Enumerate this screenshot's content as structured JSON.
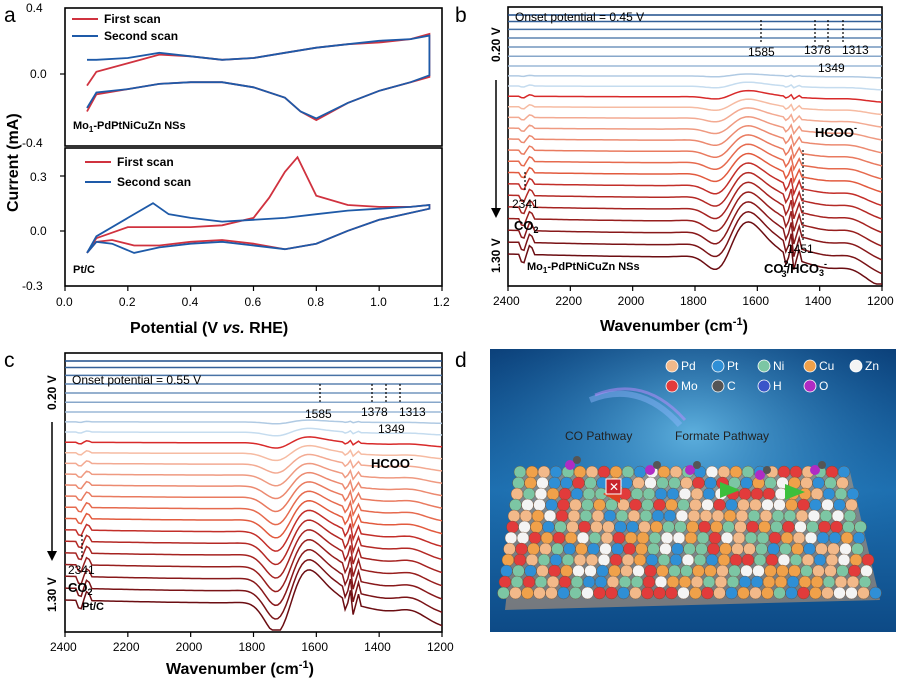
{
  "panels": {
    "a": {
      "label": "a",
      "ylabel": "Current (mA)",
      "xlabel_prefix": "Potential (V ",
      "xlabel_italic": "vs.",
      "xlabel_suffix": " RHE)",
      "xticks": [
        "0.0",
        "0.2",
        "0.4",
        "0.6",
        "0.8",
        "1.0",
        "1.2"
      ],
      "legend": [
        "First scan",
        "Second scan"
      ],
      "top_sample_1": "Mo",
      "top_sample_sub": "1",
      "top_sample_2": "-PdPtNiCuZn NSs",
      "bottom_sample": "Pt/C",
      "top_yticks": [
        "0.4",
        "0.0",
        "-0.4"
      ],
      "bottom_yticks": [
        "0.3",
        "0.0",
        "-0.3"
      ]
    },
    "b": {
      "label": "b",
      "onset": "Onset potential = 0.45 V",
      "v_top": "0.20 V",
      "v_bottom": "1.30 V",
      "peaks": [
        "1585",
        "1378",
        "1313",
        "1349",
        "2341",
        "1451"
      ],
      "hcoo_1": "HCOO",
      "hcoo_2": "-",
      "co2": "CO",
      "co2_sub": "2",
      "co3_1": "CO",
      "co3_sub": "3",
      "co3_sup": "2-",
      "co3_2": "/HCO",
      "co3_sub2": "3",
      "co3_sup2": "-",
      "sample_1": "Mo",
      "sample_sub": "1",
      "sample_2": "-PdPtNiCuZn NSs",
      "xticks": [
        "2400",
        "2200",
        "2000",
        "1800",
        "1600",
        "1400",
        "1200"
      ],
      "xlabel_1": "Wavenumber (cm",
      "xlabel_sup": "-1",
      "xlabel_2": ")"
    },
    "c": {
      "label": "c",
      "onset": "Onset potential = 0.55 V",
      "v_top": "0.20 V",
      "v_bottom": "1.30 V",
      "peaks": [
        "1585",
        "1378",
        "1313",
        "1349",
        "2341"
      ],
      "hcoo_1": "HCOO",
      "hcoo_2": "-",
      "co2": "CO",
      "co2_sub": "2",
      "sample": "Pt/C",
      "xticks": [
        "2400",
        "2200",
        "2000",
        "1800",
        "1600",
        "1400",
        "1200"
      ],
      "xlabel_1": "Wavenumber (cm",
      "xlabel_sup": "-1",
      "xlabel_2": ")"
    },
    "d": {
      "label": "d",
      "legend": [
        {
          "name": "Pd",
          "color": "#f2b98a"
        },
        {
          "name": "Pt",
          "color": "#2f8fd6"
        },
        {
          "name": "Ni",
          "color": "#7cc6a4"
        },
        {
          "name": "Cu",
          "color": "#f0a14a"
        },
        {
          "name": "Zn",
          "color": "#f4f4f4"
        },
        {
          "name": "Mo",
          "color": "#e23b3b"
        },
        {
          "name": "C",
          "color": "#555555"
        },
        {
          "name": "H",
          "color": "#3a55c9"
        },
        {
          "name": "O",
          "color": "#b02cc4"
        }
      ],
      "co_pathway": "CO Pathway",
      "formate_pathway": "Formate Pathway"
    }
  },
  "chart_data": [
    {
      "panel": "a-top",
      "type": "line",
      "title": "",
      "xlabel": "Potential (V vs. RHE)",
      "ylabel": "Current (mA)",
      "xlim": [
        0.0,
        1.2
      ],
      "ylim": [
        -0.4,
        0.4
      ],
      "series": [
        {
          "name": "First scan",
          "color": "#d0323f",
          "x": [
            0.07,
            0.1,
            0.2,
            0.3,
            0.4,
            0.5,
            0.6,
            0.7,
            0.8,
            0.9,
            1.0,
            1.1,
            1.16,
            1.16,
            1.1,
            1.0,
            0.9,
            0.8,
            0.75,
            0.7,
            0.6,
            0.5,
            0.4,
            0.3,
            0.2,
            0.1,
            0.07
          ],
          "y": [
            -0.05,
            0.03,
            0.08,
            0.13,
            0.12,
            0.1,
            0.11,
            0.14,
            0.17,
            0.19,
            0.2,
            0.22,
            0.25,
            0.0,
            -0.03,
            -0.08,
            -0.15,
            -0.25,
            -0.2,
            -0.12,
            -0.06,
            -0.03,
            -0.03,
            -0.04,
            -0.07,
            -0.1,
            -0.2
          ]
        },
        {
          "name": "Second scan",
          "color": "#1e5aa8",
          "x": [
            0.07,
            0.1,
            0.2,
            0.3,
            0.4,
            0.5,
            0.6,
            0.7,
            0.8,
            0.9,
            1.0,
            1.1,
            1.16,
            1.16,
            1.1,
            1.0,
            0.9,
            0.8,
            0.75,
            0.7,
            0.6,
            0.5,
            0.4,
            0.3,
            0.2,
            0.1,
            0.07
          ],
          "y": [
            0.1,
            0.1,
            0.11,
            0.14,
            0.12,
            0.1,
            0.11,
            0.14,
            0.17,
            0.19,
            0.21,
            0.22,
            0.24,
            0.01,
            -0.03,
            -0.08,
            -0.15,
            -0.24,
            -0.2,
            -0.12,
            -0.06,
            -0.03,
            -0.03,
            -0.04,
            -0.07,
            -0.09,
            -0.18
          ]
        }
      ]
    },
    {
      "panel": "a-bottom",
      "type": "line",
      "title": "",
      "xlabel": "Potential (V vs. RHE)",
      "ylabel": "Current (mA)",
      "xlim": [
        0.0,
        1.2
      ],
      "ylim": [
        -0.3,
        0.45
      ],
      "series": [
        {
          "name": "First scan",
          "color": "#d0323f",
          "x": [
            0.07,
            0.1,
            0.2,
            0.28,
            0.35,
            0.4,
            0.5,
            0.6,
            0.65,
            0.7,
            0.74,
            0.8,
            0.9,
            1.0,
            1.1,
            1.16,
            1.16,
            1.0,
            0.9,
            0.8,
            0.7,
            0.6,
            0.5,
            0.4,
            0.3,
            0.22,
            0.15,
            0.1,
            0.07
          ],
          "y": [
            -0.12,
            -0.04,
            0.02,
            0.02,
            0.02,
            0.02,
            0.03,
            0.07,
            0.18,
            0.32,
            0.4,
            0.19,
            0.14,
            0.13,
            0.13,
            0.14,
            0.12,
            0.06,
            0.0,
            -0.07,
            -0.1,
            -0.07,
            -0.05,
            -0.06,
            -0.08,
            -0.08,
            -0.05,
            -0.06,
            -0.12
          ]
        },
        {
          "name": "Second scan",
          "color": "#1e5aa8",
          "x": [
            0.07,
            0.1,
            0.2,
            0.28,
            0.33,
            0.4,
            0.5,
            0.6,
            0.7,
            0.8,
            0.9,
            1.0,
            1.1,
            1.16,
            1.16,
            1.0,
            0.9,
            0.8,
            0.7,
            0.6,
            0.5,
            0.4,
            0.3,
            0.22,
            0.15,
            0.1,
            0.07
          ],
          "y": [
            -0.12,
            -0.03,
            0.07,
            0.15,
            0.09,
            0.07,
            0.05,
            0.06,
            0.07,
            0.09,
            0.11,
            0.12,
            0.13,
            0.14,
            0.12,
            0.06,
            0.0,
            -0.07,
            -0.1,
            -0.08,
            -0.06,
            -0.07,
            -0.09,
            -0.12,
            -0.07,
            -0.06,
            -0.12
          ]
        }
      ]
    },
    {
      "panel": "b",
      "type": "line",
      "title": "",
      "xlabel": "Wavenumber (cm-1)",
      "ylabel": "",
      "xlim": [
        2400,
        1200
      ],
      "annotations": [
        "Onset potential = 0.45 V",
        "1585",
        "1378",
        "1313",
        "1349",
        "2341",
        "1451",
        "HCOO-",
        "CO2",
        "CO32-/HCO3-",
        "Mo1-PdPtNiCuZn NSs",
        "0.20 V",
        "1.30 V"
      ],
      "curve_count": 24,
      "potential_range": [
        "0.20 V",
        "1.30 V"
      ]
    },
    {
      "panel": "c",
      "type": "line",
      "title": "",
      "xlabel": "Wavenumber (cm-1)",
      "ylabel": "",
      "xlim": [
        2400,
        1200
      ],
      "annotations": [
        "Onset potential = 0.55 V",
        "1585",
        "1378",
        "1313",
        "1349",
        "2341",
        "HCOO-",
        "CO2",
        "Pt/C",
        "0.20 V",
        "1.30 V"
      ],
      "curve_count": 24,
      "potential_range": [
        "0.20 V",
        "1.30 V"
      ]
    }
  ]
}
